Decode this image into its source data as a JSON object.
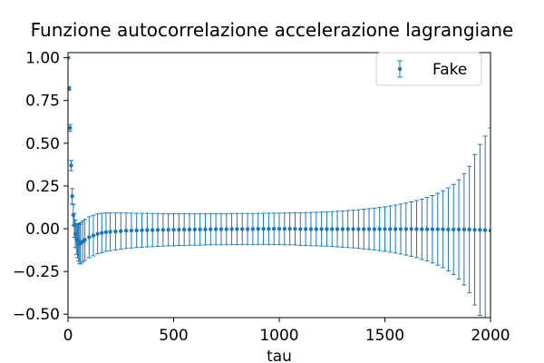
{
  "chart_data": {
    "type": "scatter",
    "title": "Funzione autocorrelazione accelerazione lagrangiane",
    "xlabel": "tau",
    "ylabel": "",
    "xlim": [
      0,
      2000
    ],
    "ylim": [
      -0.52,
      1.03
    ],
    "xticks": [
      0,
      500,
      1000,
      1500,
      2000
    ],
    "yticks": [
      -0.5,
      -0.25,
      0.0,
      0.25,
      0.5,
      0.75,
      1.0
    ],
    "xtick_labels": [
      "0",
      "500",
      "1000",
      "1500",
      "2000"
    ],
    "ytick_labels": [
      "−0.50",
      "−0.25",
      "0.00",
      "0.25",
      "0.50",
      "0.75",
      "1.00"
    ],
    "grid": false,
    "legend_position": "top-right",
    "color": "#1f77b4",
    "series": [
      {
        "name": "Fake",
        "error_bars": true,
        "x": [
          0,
          5,
          10,
          15,
          20,
          25,
          30,
          35,
          40,
          45,
          50,
          55,
          60,
          70,
          80,
          100,
          120,
          140,
          160,
          180,
          200,
          225,
          250,
          275,
          300,
          325,
          350,
          375,
          400,
          425,
          450,
          475,
          500,
          525,
          550,
          575,
          600,
          625,
          650,
          675,
          700,
          725,
          750,
          775,
          800,
          825,
          850,
          875,
          900,
          925,
          950,
          975,
          1000,
          1025,
          1050,
          1075,
          1100,
          1125,
          1150,
          1175,
          1200,
          1225,
          1250,
          1275,
          1300,
          1325,
          1350,
          1375,
          1400,
          1425,
          1450,
          1475,
          1500,
          1525,
          1550,
          1575,
          1600,
          1625,
          1650,
          1675,
          1700,
          1725,
          1750,
          1775,
          1800,
          1825,
          1850,
          1875,
          1900,
          1925,
          1950,
          1975,
          2000
        ],
        "y": [
          1.0,
          0.82,
          0.59,
          0.37,
          0.19,
          0.08,
          0.02,
          -0.03,
          -0.06,
          -0.07,
          -0.08,
          -0.09,
          -0.085,
          -0.075,
          -0.065,
          -0.05,
          -0.04,
          -0.03,
          -0.025,
          -0.02,
          -0.018,
          -0.016,
          -0.014,
          -0.012,
          -0.011,
          -0.01,
          -0.009,
          -0.008,
          -0.008,
          -0.007,
          -0.007,
          -0.006,
          -0.006,
          -0.005,
          -0.005,
          -0.005,
          -0.004,
          -0.004,
          -0.004,
          -0.003,
          -0.003,
          -0.003,
          -0.003,
          -0.002,
          -0.002,
          -0.002,
          -0.002,
          -0.002,
          -0.001,
          -0.001,
          -0.001,
          -0.001,
          -0.001,
          -0.001,
          -0.001,
          -0.001,
          -0.002,
          -0.002,
          -0.002,
          -0.002,
          -0.002,
          -0.002,
          -0.002,
          -0.002,
          -0.002,
          -0.002,
          -0.002,
          -0.002,
          -0.002,
          -0.002,
          -0.002,
          -0.002,
          -0.002,
          -0.002,
          -0.002,
          -0.002,
          -0.002,
          -0.002,
          -0.002,
          -0.003,
          -0.003,
          -0.003,
          -0.003,
          -0.003,
          -0.004,
          -0.004,
          -0.004,
          -0.004,
          -0.005,
          -0.006,
          -0.007,
          -0.008,
          -0.01
        ],
        "yerr": [
          0.005,
          0.01,
          0.02,
          0.03,
          0.045,
          0.06,
          0.07,
          0.08,
          0.09,
          0.1,
          0.11,
          0.115,
          0.12,
          0.12,
          0.12,
          0.12,
          0.119,
          0.117,
          0.115,
          0.112,
          0.11,
          0.108,
          0.106,
          0.104,
          0.102,
          0.1,
          0.099,
          0.098,
          0.097,
          0.096,
          0.095,
          0.094,
          0.094,
          0.093,
          0.093,
          0.092,
          0.092,
          0.092,
          0.091,
          0.091,
          0.091,
          0.091,
          0.091,
          0.091,
          0.091,
          0.091,
          0.091,
          0.091,
          0.091,
          0.091,
          0.092,
          0.092,
          0.092,
          0.093,
          0.093,
          0.094,
          0.095,
          0.096,
          0.097,
          0.098,
          0.099,
          0.1,
          0.102,
          0.104,
          0.106,
          0.108,
          0.11,
          0.113,
          0.116,
          0.119,
          0.122,
          0.126,
          0.13,
          0.135,
          0.14,
          0.146,
          0.152,
          0.159,
          0.167,
          0.176,
          0.186,
          0.197,
          0.21,
          0.225,
          0.243,
          0.263,
          0.29,
          0.325,
          0.37,
          0.44,
          0.5,
          0.55,
          0.6
        ]
      }
    ]
  }
}
